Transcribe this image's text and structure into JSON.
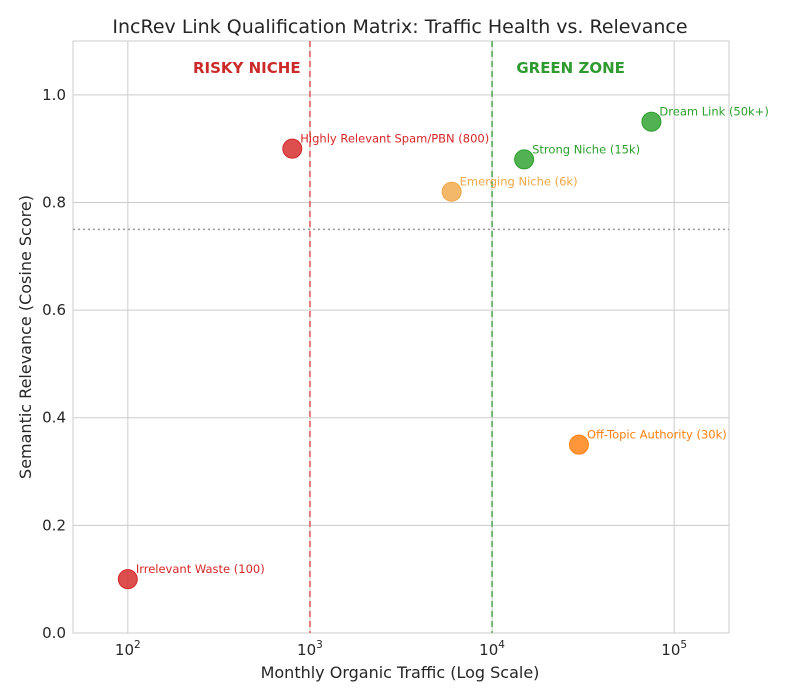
{
  "chart_data": {
    "type": "scatter",
    "title": "IncRev Link Qualification Matrix: Traffic Health vs. Relevance",
    "xlabel": "Monthly Organic Traffic (Log Scale)",
    "ylabel": "Semantic Relevance (Cosine Score)",
    "x_scale": "log",
    "xlim": [
      50,
      200000
    ],
    "ylim": [
      0,
      1.1
    ],
    "grid": true,
    "x_ticks": [
      {
        "value": 100,
        "base": "10",
        "exp": "2"
      },
      {
        "value": 1000,
        "base": "10",
        "exp": "3"
      },
      {
        "value": 10000,
        "base": "10",
        "exp": "4"
      },
      {
        "value": 100000,
        "base": "10",
        "exp": "5"
      }
    ],
    "y_ticks": [
      {
        "value": 0.0,
        "label": "0.0"
      },
      {
        "value": 0.2,
        "label": "0.2"
      },
      {
        "value": 0.4,
        "label": "0.4"
      },
      {
        "value": 0.6,
        "label": "0.6"
      },
      {
        "value": 0.8,
        "label": "0.8"
      },
      {
        "value": 1.0,
        "label": "1.0"
      }
    ],
    "points": [
      {
        "label": "Irrelevant Waste (100)",
        "x": 100,
        "y": 0.1,
        "color": "#d62728"
      },
      {
        "label": "Highly Relevant Spam/PBN (800)",
        "x": 800,
        "y": 0.9,
        "color": "#d62728"
      },
      {
        "label": "Emerging Niche (6k)",
        "x": 6000,
        "y": 0.82,
        "color": "#f0a848"
      },
      {
        "label": "Strong Niche (15k)",
        "x": 15000,
        "y": 0.88,
        "color": "#2ca02c"
      },
      {
        "label": "Off-Topic Authority (30k)",
        "x": 30000,
        "y": 0.35,
        "color": "#ff7f0e"
      },
      {
        "label": "Dream Link (50k+)",
        "x": 75000,
        "y": 0.95,
        "color": "#2ca02c"
      }
    ],
    "reference_lines": [
      {
        "orientation": "vertical",
        "value": 1000,
        "color": "#e06060",
        "style": "dashed"
      },
      {
        "orientation": "vertical",
        "value": 10000,
        "color": "#5aa85a",
        "style": "dashed"
      },
      {
        "orientation": "horizontal",
        "value": 0.75,
        "color": "#999999",
        "style": "dotted"
      }
    ],
    "annotations": [
      {
        "text": "RISKY NICHE",
        "x": 450,
        "y": 1.05,
        "color": "#cc2a2a"
      },
      {
        "text": "GREEN ZONE",
        "x": 27000,
        "y": 1.05,
        "color": "#2f9a2f"
      }
    ]
  }
}
